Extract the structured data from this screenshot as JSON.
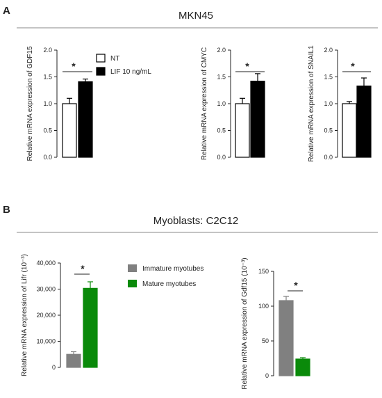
{
  "panels": [
    {
      "letter": "A",
      "title": "MKN45"
    },
    {
      "letter": "B",
      "title": "Myoblasts: C2C12"
    }
  ],
  "legends": {
    "a": [
      {
        "label": "NT",
        "fill": "#ffffff",
        "stroke": "#000000"
      },
      {
        "label": "LIF 10 ng/mL",
        "fill": "#000000",
        "stroke": "#000000"
      }
    ],
    "b": [
      {
        "label": "Immature myotubes",
        "fill": "#808080",
        "stroke": "#808080"
      },
      {
        "label": "Mature myotubes",
        "fill": "#0a8a0a",
        "stroke": "#0a8a0a"
      }
    ]
  },
  "chart_data": [
    {
      "type": "bar",
      "ylabel": "Relative mRNA expression of GDF15",
      "ylim": [
        0,
        2.0
      ],
      "yticks": [
        "0.0",
        "0.5",
        "1.0",
        "1.5",
        "2.0"
      ],
      "series": [
        {
          "name": "NT",
          "values": [
            1.0
          ],
          "errors": [
            0.1
          ],
          "color": "#ffffff"
        },
        {
          "name": "LIF 10 ng/mL",
          "values": [
            1.41
          ],
          "errors": [
            0.05
          ],
          "color": "#000000"
        }
      ],
      "significance": "*"
    },
    {
      "type": "bar",
      "ylabel": "Relative mRNA expression of CMYC",
      "ylim": [
        0,
        2.0
      ],
      "yticks": [
        "0.0",
        "0.5",
        "1.0",
        "1.5",
        "2.0"
      ],
      "series": [
        {
          "name": "NT",
          "values": [
            1.0
          ],
          "errors": [
            0.1
          ],
          "color": "#ffffff"
        },
        {
          "name": "LIF 10 ng/mL",
          "values": [
            1.42
          ],
          "errors": [
            0.14
          ],
          "color": "#000000"
        }
      ],
      "significance": "*"
    },
    {
      "type": "bar",
      "ylabel": "Relative mRNA expression of SNAIL1",
      "ylim": [
        0,
        2.0
      ],
      "yticks": [
        "0.0",
        "0.5",
        "1.0",
        "1.5",
        "2.0"
      ],
      "series": [
        {
          "name": "NT",
          "values": [
            1.0
          ],
          "errors": [
            0.04
          ],
          "color": "#ffffff"
        },
        {
          "name": "LIF 10 ng/mL",
          "values": [
            1.33
          ],
          "errors": [
            0.15
          ],
          "color": "#000000"
        }
      ],
      "significance": "*"
    },
    {
      "type": "bar",
      "ylabel": "Relative mRNA expression of Lifr (10⁻³)",
      "ylim": [
        0,
        40000
      ],
      "yticks": [
        "0",
        "10,000",
        "20,000",
        "30,000",
        "40,000"
      ],
      "series": [
        {
          "name": "Immature myotubes",
          "values": [
            5000
          ],
          "errors": [
            1000
          ],
          "color": "#808080"
        },
        {
          "name": "Mature myotubes",
          "values": [
            30300
          ],
          "errors": [
            2500
          ],
          "color": "#0a8a0a"
        }
      ],
      "significance": "*"
    },
    {
      "type": "bar",
      "ylabel": "Relative mRNA expression of Gdf15 (10⁻³)",
      "ylim": [
        0,
        150
      ],
      "yticks": [
        "0",
        "50",
        "100",
        "150"
      ],
      "series": [
        {
          "name": "Immature myotubes",
          "values": [
            108
          ],
          "errors": [
            6
          ],
          "color": "#808080"
        },
        {
          "name": "Mature myotubes",
          "values": [
            24
          ],
          "errors": [
            2
          ],
          "color": "#0a8a0a"
        }
      ],
      "significance": "*"
    }
  ]
}
